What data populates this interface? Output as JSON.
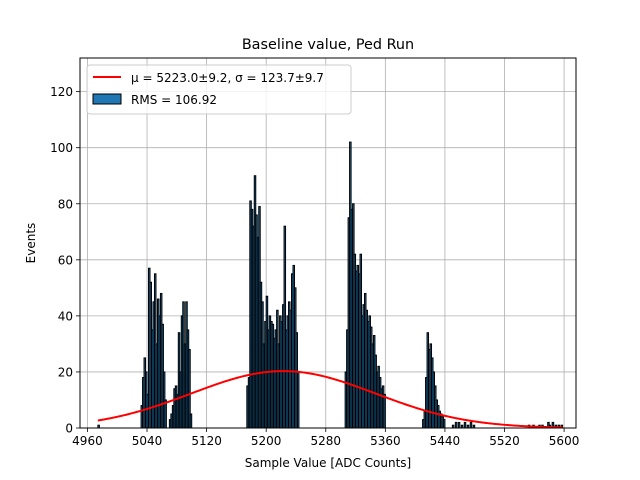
{
  "chart_data": {
    "type": "bar",
    "title": "Baseline value, Ped Run",
    "xlabel": "Sample Value [ADC Counts]",
    "ylabel": "Events",
    "xlim": [
      4950,
      5616
    ],
    "ylim": [
      0,
      132
    ],
    "xticks": [
      4960,
      5040,
      5120,
      5200,
      5280,
      5360,
      5440,
      5520,
      5600
    ],
    "yticks": [
      0,
      20,
      40,
      60,
      80,
      100,
      120
    ],
    "grid": true,
    "legend_position": "top-left",
    "legend": {
      "fit_label": "μ = 5223.0±9.2, σ = 123.7±9.7",
      "hist_label": "RMS = 106.92"
    },
    "colors": {
      "histogram_face": "#1f77b4",
      "histogram_edge": "#000000",
      "fit": "#ff0000",
      "grid": "#b0b0b0"
    },
    "fit": {
      "name": "μ = 5223.0±9.2, σ = 123.7±9.7",
      "mu": 5223.0,
      "sigma": 123.7,
      "amplitude": 20.3,
      "x_range": [
        4974,
        5598
      ]
    },
    "histogram": {
      "name": "RMS = 106.92",
      "bin_width": 2,
      "bins": [
        [
          4974,
          1
        ],
        [
          5032,
          8
        ],
        [
          5034,
          18
        ],
        [
          5036,
          25
        ],
        [
          5038,
          20
        ],
        [
          5040,
          12
        ],
        [
          5042,
          57
        ],
        [
          5044,
          52
        ],
        [
          5046,
          35
        ],
        [
          5048,
          45
        ],
        [
          5050,
          55
        ],
        [
          5052,
          30
        ],
        [
          5054,
          46
        ],
        [
          5056,
          40
        ],
        [
          5058,
          48
        ],
        [
          5060,
          37
        ],
        [
          5062,
          20
        ],
        [
          5064,
          10
        ],
        [
          5070,
          3
        ],
        [
          5072,
          5
        ],
        [
          5074,
          8
        ],
        [
          5076,
          14
        ],
        [
          5078,
          15
        ],
        [
          5080,
          12
        ],
        [
          5082,
          34
        ],
        [
          5084,
          20
        ],
        [
          5086,
          40
        ],
        [
          5088,
          45
        ],
        [
          5090,
          30
        ],
        [
          5092,
          45
        ],
        [
          5094,
          35
        ],
        [
          5096,
          28
        ],
        [
          5098,
          5
        ],
        [
          5174,
          15
        ],
        [
          5176,
          18
        ],
        [
          5178,
          81
        ],
        [
          5180,
          78
        ],
        [
          5182,
          72
        ],
        [
          5184,
          90
        ],
        [
          5186,
          76
        ],
        [
          5188,
          68
        ],
        [
          5190,
          79
        ],
        [
          5192,
          52
        ],
        [
          5194,
          45
        ],
        [
          5196,
          30
        ],
        [
          5198,
          38
        ],
        [
          5200,
          47
        ],
        [
          5202,
          35
        ],
        [
          5204,
          40
        ],
        [
          5206,
          38
        ],
        [
          5208,
          37
        ],
        [
          5210,
          32
        ],
        [
          5212,
          35
        ],
        [
          5214,
          42
        ],
        [
          5216,
          30
        ],
        [
          5218,
          40
        ],
        [
          5220,
          38
        ],
        [
          5222,
          44
        ],
        [
          5224,
          72
        ],
        [
          5226,
          35
        ],
        [
          5228,
          40
        ],
        [
          5230,
          45
        ],
        [
          5232,
          42
        ],
        [
          5234,
          55
        ],
        [
          5236,
          58
        ],
        [
          5238,
          50
        ],
        [
          5240,
          34
        ],
        [
          5242,
          20
        ],
        [
          5306,
          20
        ],
        [
          5308,
          35
        ],
        [
          5310,
          75
        ],
        [
          5312,
          102
        ],
        [
          5314,
          78
        ],
        [
          5316,
          80
        ],
        [
          5318,
          62
        ],
        [
          5320,
          56
        ],
        [
          5322,
          58
        ],
        [
          5324,
          55
        ],
        [
          5326,
          62
        ],
        [
          5328,
          40
        ],
        [
          5330,
          44
        ],
        [
          5332,
          48
        ],
        [
          5334,
          42
        ],
        [
          5336,
          38
        ],
        [
          5338,
          40
        ],
        [
          5340,
          36
        ],
        [
          5342,
          30
        ],
        [
          5344,
          33
        ],
        [
          5346,
          26
        ],
        [
          5348,
          20
        ],
        [
          5350,
          22
        ],
        [
          5352,
          18
        ],
        [
          5354,
          14
        ],
        [
          5356,
          15
        ],
        [
          5358,
          12
        ],
        [
          5410,
          3
        ],
        [
          5412,
          6
        ],
        [
          5414,
          18
        ],
        [
          5416,
          34
        ],
        [
          5418,
          28
        ],
        [
          5420,
          30
        ],
        [
          5422,
          25
        ],
        [
          5424,
          20
        ],
        [
          5426,
          15
        ],
        [
          5428,
          10
        ],
        [
          5430,
          8
        ],
        [
          5432,
          6
        ],
        [
          5434,
          5
        ],
        [
          5436,
          4
        ],
        [
          5438,
          3
        ],
        [
          5450,
          1
        ],
        [
          5454,
          2
        ],
        [
          5458,
          2
        ],
        [
          5462,
          1
        ],
        [
          5466,
          2
        ],
        [
          5470,
          1
        ],
        [
          5474,
          2
        ],
        [
          5478,
          1
        ],
        [
          5552,
          1
        ],
        [
          5558,
          1
        ],
        [
          5566,
          1
        ],
        [
          5570,
          1
        ],
        [
          5578,
          2
        ],
        [
          5580,
          1
        ],
        [
          5584,
          2
        ],
        [
          5588,
          1
        ],
        [
          5592,
          1
        ],
        [
          5596,
          1
        ]
      ]
    }
  }
}
